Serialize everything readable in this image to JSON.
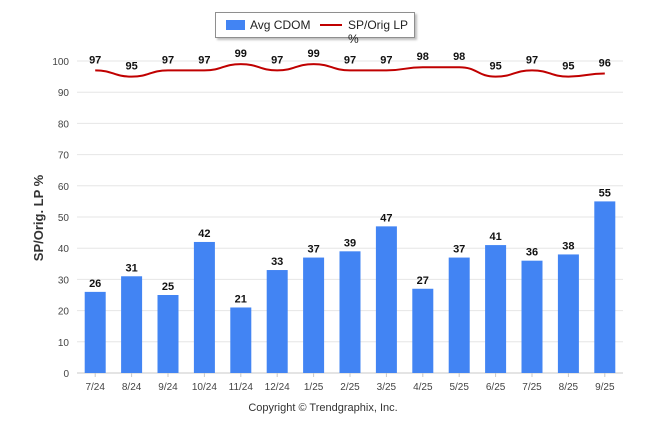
{
  "chart_data": {
    "type": "bar",
    "categories": [
      "7/24",
      "8/24",
      "9/24",
      "10/24",
      "11/24",
      "12/24",
      "1/25",
      "2/25",
      "3/25",
      "4/25",
      "5/25",
      "6/25",
      "7/25",
      "8/25",
      "9/25"
    ],
    "series": [
      {
        "name": "Avg CDOM",
        "type": "bar",
        "color": "#4284f3",
        "values": [
          26,
          31,
          25,
          42,
          21,
          33,
          37,
          39,
          47,
          27,
          37,
          41,
          36,
          38,
          55
        ]
      },
      {
        "name": "SP/Orig LP %",
        "type": "line",
        "color": "#c00000",
        "values": [
          97,
          95,
          97,
          97,
          99,
          97,
          99,
          97,
          97,
          98,
          98,
          95,
          97,
          95,
          96
        ]
      }
    ],
    "ylabel": "SP/Orig. LP %",
    "ylim": [
      0,
      100
    ],
    "yticks": [
      0,
      10,
      20,
      30,
      40,
      50,
      60,
      70,
      80,
      90,
      100
    ],
    "grid": true,
    "legend_position": "top-center"
  },
  "footer": {
    "copyright": "Copyright © Trendgraphix, Inc."
  }
}
